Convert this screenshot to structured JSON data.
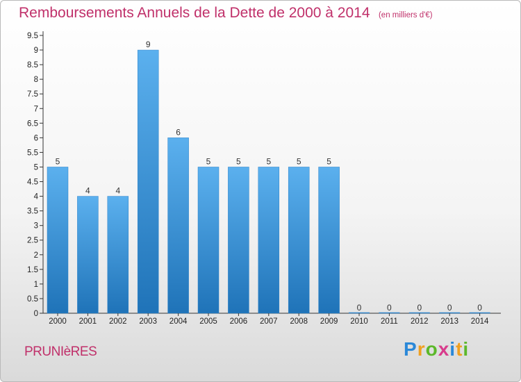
{
  "chart_data": {
    "type": "bar",
    "title": "Remboursements Annuels de la Dette de 2000 à 2014",
    "subtitle": "(en milliers d'€)",
    "categories": [
      "2000",
      "2001",
      "2002",
      "2003",
      "2004",
      "2005",
      "2006",
      "2007",
      "2008",
      "2009",
      "2010",
      "2011",
      "2012",
      "2013",
      "2014"
    ],
    "values": [
      5,
      4,
      4,
      9,
      6,
      5,
      5,
      5,
      5,
      5,
      0,
      0,
      0,
      0,
      0
    ],
    "value_labels": [
      "5",
      "4",
      "4",
      "9",
      "6",
      "5",
      "5",
      "5",
      "5",
      "5",
      "0",
      "0",
      "0",
      "0",
      "0"
    ],
    "ylim": [
      0,
      9.5
    ],
    "yticks": [
      "0",
      "0.5",
      "1",
      "1.5",
      "2",
      "2.5",
      "3",
      "3.5",
      "4",
      "4.5",
      "5",
      "5.5",
      "6",
      "6.5",
      "7",
      "7.5",
      "8",
      "8.5",
      "9",
      "9.5"
    ],
    "xlabel": "",
    "ylabel": "",
    "grid": false,
    "bar_color": "#3d93d8"
  },
  "commune": "PRUNIèRES",
  "brand": {
    "text": "Proxiti",
    "letters": [
      "P",
      "r",
      "o",
      "x",
      "i",
      "t",
      "i"
    ],
    "colors": [
      "#2a88d8",
      "#f0a020",
      "#5cb82a",
      "#d83c8c",
      "#2a88d8",
      "#f0a020",
      "#5cb82a"
    ]
  }
}
